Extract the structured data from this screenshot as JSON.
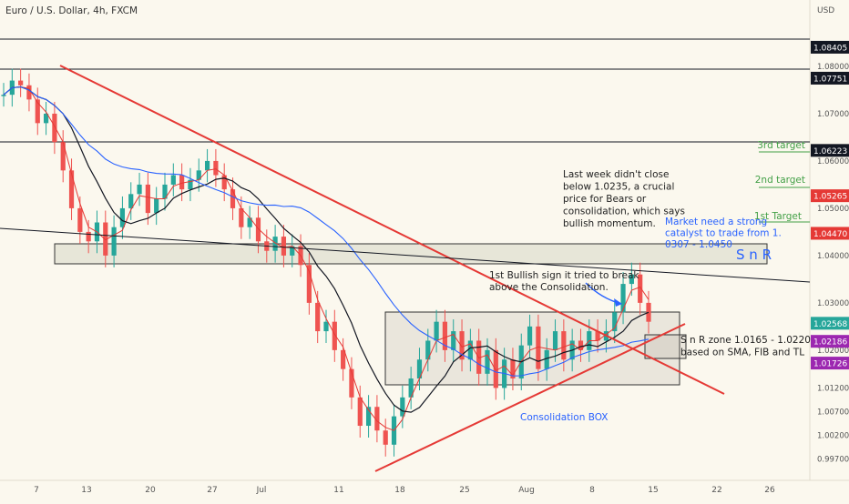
{
  "header": {
    "symbol_title": "Euro / U.S. Dollar, 4h, FXCM",
    "currency": "USD"
  },
  "chart_data": {
    "type": "candlestick",
    "title": "Euro / U.S. Dollar, 4h, FXCM",
    "ylabel": "USD",
    "ylim": [
      0.994,
      1.0925
    ],
    "x_ticks": [
      "7",
      "13",
      "20",
      "27",
      "Jul",
      "11",
      "18",
      "25",
      "Aug",
      "8",
      "15",
      "22",
      "26"
    ],
    "y_ticks": [
      "1.08000",
      "1.07000",
      "1.06000",
      "1.05000",
      "1.04000",
      "1.03000",
      "1.02000",
      "1.01200",
      "1.00700",
      "1.00200",
      "0.99700"
    ],
    "price_badges": [
      {
        "value": "1.08405",
        "color": "#131722"
      },
      {
        "value": "1.07751",
        "color": "#131722"
      },
      {
        "value": "1.06223",
        "color": "#131722"
      },
      {
        "value": "1.05265",
        "color": "#e53935"
      },
      {
        "value": "1.04470",
        "color": "#e53935"
      },
      {
        "value": "1.02568",
        "color": "#26a69a"
      },
      {
        "value": "1.02186",
        "color": "#9c27b0"
      },
      {
        "value": "1.01726",
        "color": "#9c27b0"
      }
    ],
    "horizontal_levels": [
      1.08405,
      1.07751,
      1.06223
    ],
    "targets": [
      {
        "label": "3rd target",
        "value": 1.06223,
        "color": "#43a047"
      },
      {
        "label": "2nd target",
        "value": 1.05265,
        "color": "#43a047"
      },
      {
        "label": "1st Target",
        "value": 1.0447,
        "color": "#43a047"
      }
    ],
    "close_series": [
      1.074,
      1.077,
      1.076,
      1.073,
      1.068,
      1.07,
      1.064,
      1.058,
      1.05,
      1.045,
      1.043,
      1.047,
      1.04,
      1.046,
      1.05,
      1.053,
      1.055,
      1.049,
      1.052,
      1.055,
      1.057,
      1.054,
      1.056,
      1.058,
      1.06,
      1.057,
      1.054,
      1.05,
      1.046,
      1.048,
      1.043,
      1.041,
      1.044,
      1.04,
      1.042,
      1.038,
      1.03,
      1.024,
      1.026,
      1.02,
      1.016,
      1.01,
      1.004,
      1.008,
      1.003,
      1.0,
      1.006,
      1.01,
      1.014,
      1.018,
      1.022,
      1.026,
      1.02,
      1.024,
      1.018,
      1.022,
      1.015,
      1.02,
      1.012,
      1.018,
      1.014,
      1.021,
      1.025,
      1.016,
      1.02,
      1.024,
      1.018,
      1.022,
      1.02,
      1.024,
      1.022,
      1.024,
      1.028,
      1.034,
      1.036,
      1.03,
      1.026
    ],
    "zones": [
      {
        "label": "S n R",
        "range": [
          1.037,
          1.04
        ]
      },
      {
        "label": "Consolidation BOX",
        "range": [
          1.0122,
          1.0268
        ]
      },
      {
        "label": "S n R zone",
        "range": [
          1.0165,
          1.022
        ]
      }
    ],
    "annotations": {
      "weekly": [
        "Last week didn't close",
        "below 1.0235, a crucial",
        "price for Bears or",
        "consolidation, which says",
        "bullish momentum."
      ],
      "catalyst": [
        "Market need a strong",
        "catalyst to trade from 1.",
        "0307 - 1.0450"
      ],
      "snr_label": "S n R",
      "bullish": [
        "1st Bullish sign it tried to break",
        "above the Consolidation."
      ],
      "snr_zone": [
        "S n R zone 1.0165 - 1.0220",
        "based on SMA, FIB and TL"
      ],
      "consolidation": "Consolidation BOX"
    },
    "grid": false,
    "legend": "none"
  }
}
